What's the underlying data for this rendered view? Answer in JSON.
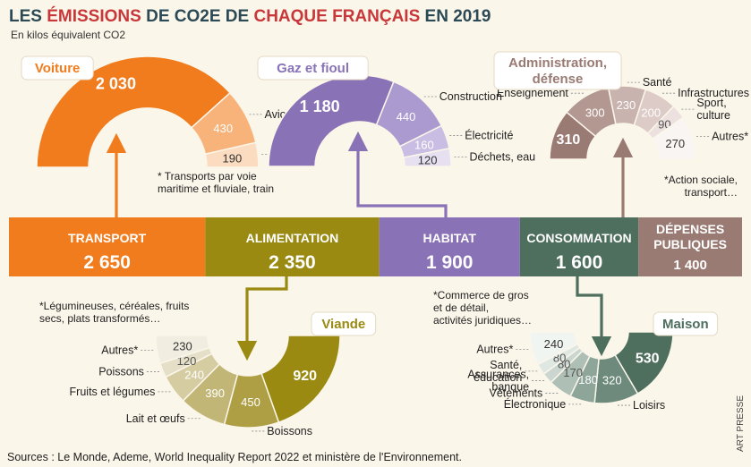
{
  "title_parts": [
    "LES ",
    "ÉMISSIONS",
    " DE ",
    "CO2E",
    " DE ",
    "CHAQUE FRANÇAIS",
    " EN 2019"
  ],
  "unit": "En kilos équivalent CO2",
  "source": "Sources : Le Monde, Ademe, World Inequality Report 2022 et ministère de l'Environnement.",
  "credit": "ART PRESSE",
  "colors": {
    "transport": "#f07c1e",
    "alimentation": "#9a8a12",
    "habitat": "#8a72b6",
    "consommation": "#4e6e5e",
    "depenses": "#9a7b74",
    "title_dark": "#2c4a55",
    "title_red": "#c8383a"
  },
  "chart_data": {
    "type": "bar",
    "title": "LES ÉMISSIONS DE CO2E DE CHAQUE FRANÇAIS EN 2019",
    "unit": "En kilos équivalent CO2",
    "categories": [
      "TRANSPORT",
      "ALIMENTATION",
      "HABITAT",
      "CONSOMMATION",
      "DÉPENSES PUBLIQUES"
    ],
    "values": [
      2650,
      2350,
      1900,
      1600,
      1400
    ],
    "breakdowns": [
      {
        "category": "TRANSPORT",
        "items": [
          {
            "label": "Voiture",
            "value": 2030
          },
          {
            "label": "Avion",
            "value": 430
          },
          {
            "label": "Autres*",
            "value": 190
          }
        ],
        "note": "* Transports par voie maritime et fluviale, train"
      },
      {
        "category": "HABITAT",
        "items": [
          {
            "label": "Gaz et fioul",
            "value": 1180
          },
          {
            "label": "Construction",
            "value": 440
          },
          {
            "label": "Électricité",
            "value": 160
          },
          {
            "label": "Déchets, eau",
            "value": 120
          }
        ]
      },
      {
        "category": "DÉPENSES PUBLIQUES",
        "items": [
          {
            "label": "Administration, défense",
            "value": 310
          },
          {
            "label": "Enseignement",
            "value": 300
          },
          {
            "label": "Santé",
            "value": 230
          },
          {
            "label": "Infrastructures",
            "value": 200
          },
          {
            "label": "Sport, culture",
            "value": 90
          },
          {
            "label": "Autres*",
            "value": 270
          }
        ],
        "note": "*Action sociale, transport…"
      },
      {
        "category": "ALIMENTATION",
        "items": [
          {
            "label": "Viande",
            "value": 920
          },
          {
            "label": "Boissons",
            "value": 450
          },
          {
            "label": "Lait et œufs",
            "value": 390
          },
          {
            "label": "Fruits et légumes",
            "value": 240
          },
          {
            "label": "Poissons",
            "value": 120
          },
          {
            "label": "Autres*",
            "value": 230
          }
        ],
        "note": "*Légumineuses, céréales, fruits secs, plats transformés…"
      },
      {
        "category": "CONSOMMATION",
        "items": [
          {
            "label": "Maison",
            "value": 530
          },
          {
            "label": "Loisirs",
            "value": 320
          },
          {
            "label": "Électronique",
            "value": 180
          },
          {
            "label": "Vêtements",
            "value": 170
          },
          {
            "label": "Assurances, banque",
            "value": 80
          },
          {
            "label": "Santé, éducation",
            "value": 80
          },
          {
            "label": "Autres*",
            "value": 240
          }
        ],
        "note": "*Commerce de gros et de détail, activités juridiques…"
      }
    ]
  },
  "bar_totals": [
    "2 650",
    "2 350",
    "1 900",
    "1 600",
    "1 400"
  ],
  "bar_labels": [
    [
      "TRANSPORT"
    ],
    [
      "ALIMENTATION"
    ],
    [
      "HABITAT"
    ],
    [
      "CONSOMMATION"
    ],
    [
      "DÉPENSES",
      "PUBLIQUES"
    ]
  ],
  "gauges": [
    {
      "key": "transport",
      "heading": "Voiture",
      "values_display": [
        "2 030",
        "430",
        "190"
      ],
      "labels": [
        [],
        [
          "Avion"
        ],
        [
          "Autres*"
        ]
      ],
      "fills": [
        "#f07c1e",
        "#f7b37a",
        "#fcdcc0"
      ],
      "text_colors": [
        "#ffffff",
        "#ffffff",
        "#333333"
      ],
      "note_lines": [
        "* Transports par voie",
        "maritime et fluviale, train"
      ]
    },
    {
      "key": "habitat",
      "heading": "Gaz et fioul",
      "values_display": [
        "1 180",
        "440",
        "160",
        "120"
      ],
      "labels": [
        [],
        [
          "Construction"
        ],
        [
          "Électricité"
        ],
        [
          "Déchets, eau"
        ]
      ],
      "fills": [
        "#8a72b6",
        "#ab9ad0",
        "#c9bde3",
        "#e6e0f1"
      ],
      "text_colors": [
        "#ffffff",
        "#ffffff",
        "#ffffff",
        "#333333"
      ],
      "note_lines": []
    },
    {
      "key": "depenses",
      "heading_lines": [
        "Administration,",
        "défense"
      ],
      "values_display": [
        "310",
        "300",
        "230",
        "200",
        "90",
        "270"
      ],
      "labels": [
        [],
        [
          "Enseignement"
        ],
        [
          "Santé"
        ],
        [
          "Infrastructures"
        ],
        [
          "Sport,",
          "culture"
        ],
        [
          "Autres*"
        ]
      ],
      "fills": [
        "#9a7b74",
        "#b39892",
        "#c9b3ae",
        "#dccbc7",
        "#ece1de",
        "#f9f5f3"
      ],
      "text_colors": [
        "#ffffff",
        "#ffffff",
        "#ffffff",
        "#ffffff",
        "#555555",
        "#333333"
      ],
      "note_lines": [
        "*Action sociale,",
        "transport…"
      ]
    },
    {
      "key": "alimentation",
      "heading": "Viande",
      "values_display": [
        "920",
        "450",
        "390",
        "240",
        "120",
        "230"
      ],
      "labels": [
        [],
        [
          "Boissons"
        ],
        [
          "Lait et œufs"
        ],
        [
          "Fruits et légumes"
        ],
        [
          "Poissons"
        ],
        [
          "Autres*"
        ]
      ],
      "fills": [
        "#9a8a12",
        "#ae9f45",
        "#c2b676",
        "#d5cca2",
        "#e5dfc8",
        "#f1ede1"
      ],
      "text_colors": [
        "#ffffff",
        "#ffffff",
        "#ffffff",
        "#ffffff",
        "#555555",
        "#333333"
      ],
      "note_lines": [
        "*Légumineuses, céréales, fruits",
        "secs, plats transformés…"
      ]
    },
    {
      "key": "consommation",
      "heading": "Maison",
      "values_display": [
        "530",
        "320",
        "180",
        "170",
        "80",
        "80",
        "240"
      ],
      "labels": [
        [],
        [
          "Loisirs"
        ],
        [
          "Électronique"
        ],
        [
          "Vêtements"
        ],
        [
          "Assurances,",
          "banque"
        ],
        [
          "Santé,",
          "éducation"
        ],
        [
          "Autres*"
        ]
      ],
      "fills": [
        "#4e6e5e",
        "#6e8a7c",
        "#8ea59a",
        "#aebfb6",
        "#cad6cf",
        "#dfe7e2",
        "#f1f5f2"
      ],
      "text_colors": [
        "#ffffff",
        "#ffffff",
        "#ffffff",
        "#555555",
        "#555555",
        "#555555",
        "#333333"
      ],
      "note_lines": [
        "*Commerce de gros",
        "et de détail,",
        "activités juridiques…"
      ]
    }
  ]
}
